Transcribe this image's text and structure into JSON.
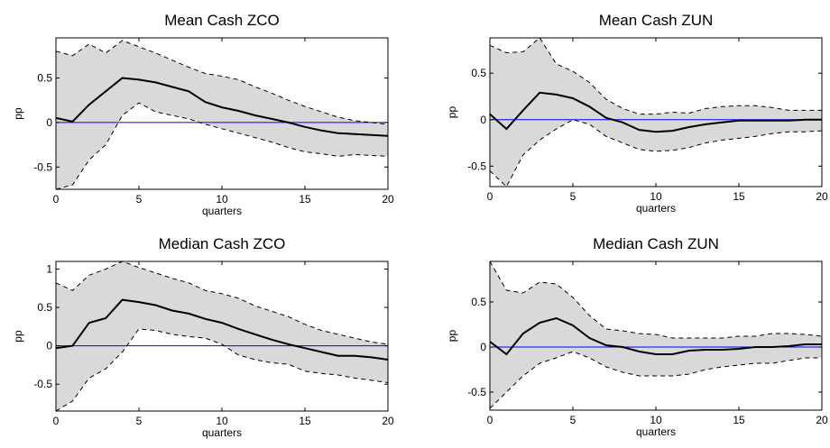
{
  "chart_data": [
    {
      "type": "line",
      "title": "Mean Cash ZCO",
      "xlabel": "quarters",
      "ylabel": "pp",
      "xlim": [
        0,
        20
      ],
      "ylim": [
        -0.75,
        0.95
      ],
      "xticks": [
        0,
        5,
        10,
        15,
        20
      ],
      "xtick_labels": [
        "0",
        "5",
        "10",
        "15",
        "20"
      ],
      "yticks": [
        -0.5,
        0,
        0.5
      ],
      "ytick_labels": [
        "-0.5",
        "0",
        "0.5"
      ],
      "grid": false,
      "x": [
        0,
        1,
        2,
        3,
        4,
        5,
        6,
        7,
        8,
        9,
        10,
        11,
        12,
        13,
        14,
        15,
        16,
        17,
        18,
        19,
        20
      ],
      "series": [
        {
          "role": "upper band",
          "style": "dashed",
          "values": [
            0.8,
            0.75,
            0.88,
            0.78,
            0.92,
            0.85,
            0.78,
            0.7,
            0.62,
            0.55,
            0.52,
            0.48,
            0.4,
            0.33,
            0.25,
            0.18,
            0.12,
            0.06,
            0.02,
            0.0,
            -0.02
          ]
        },
        {
          "role": "estimate",
          "style": "solid",
          "values": [
            0.05,
            0.01,
            0.2,
            0.35,
            0.5,
            0.48,
            0.45,
            0.4,
            0.35,
            0.23,
            0.17,
            0.13,
            0.08,
            0.04,
            0.0,
            -0.05,
            -0.09,
            -0.12,
            -0.13,
            -0.14,
            -0.15
          ]
        },
        {
          "role": "lower band",
          "style": "dashed",
          "values": [
            -0.75,
            -0.7,
            -0.42,
            -0.25,
            0.08,
            0.22,
            0.12,
            0.08,
            0.04,
            -0.02,
            -0.07,
            -0.12,
            -0.17,
            -0.22,
            -0.28,
            -0.33,
            -0.35,
            -0.38,
            -0.36,
            -0.37,
            -0.38
          ]
        }
      ],
      "zero_line": 0,
      "colors": {
        "band_fill": "#d9d9d9",
        "zero_line": "#0000ff",
        "lines": "#000000"
      }
    },
    {
      "type": "line",
      "title": "Mean Cash ZUN",
      "xlabel": "quarters",
      "ylabel": "pp",
      "xlim": [
        0,
        20
      ],
      "ylim": [
        -0.72,
        0.88
      ],
      "xticks": [
        0,
        5,
        10,
        15,
        20
      ],
      "xtick_labels": [
        "0",
        "5",
        "10",
        "15",
        "20"
      ],
      "yticks": [
        -0.5,
        0,
        0.5
      ],
      "ytick_labels": [
        "-0.5",
        "0",
        "0.5"
      ],
      "grid": false,
      "x": [
        0,
        1,
        2,
        3,
        4,
        5,
        6,
        7,
        8,
        9,
        10,
        11,
        12,
        13,
        14,
        15,
        16,
        17,
        18,
        19,
        20
      ],
      "series": [
        {
          "role": "upper band",
          "style": "dashed",
          "values": [
            0.8,
            0.72,
            0.73,
            0.88,
            0.6,
            0.52,
            0.4,
            0.22,
            0.12,
            0.06,
            0.06,
            0.08,
            0.07,
            0.12,
            0.14,
            0.15,
            0.15,
            0.13,
            0.1,
            0.1,
            0.1
          ]
        },
        {
          "role": "estimate",
          "style": "solid",
          "values": [
            0.06,
            -0.1,
            0.1,
            0.29,
            0.27,
            0.23,
            0.14,
            0.02,
            -0.03,
            -0.11,
            -0.13,
            -0.12,
            -0.08,
            -0.05,
            -0.03,
            -0.01,
            -0.01,
            -0.01,
            -0.01,
            0.0,
            0.0
          ]
        },
        {
          "role": "lower band",
          "style": "dashed",
          "values": [
            -0.55,
            -0.72,
            -0.38,
            -0.22,
            -0.1,
            0.0,
            -0.05,
            -0.18,
            -0.25,
            -0.32,
            -0.34,
            -0.33,
            -0.3,
            -0.25,
            -0.22,
            -0.2,
            -0.18,
            -0.15,
            -0.13,
            -0.13,
            -0.12
          ]
        }
      ],
      "zero_line": 0,
      "colors": {
        "band_fill": "#d9d9d9",
        "zero_line": "#0000ff",
        "lines": "#000000"
      }
    },
    {
      "type": "line",
      "title": "Median Cash ZCO",
      "xlabel": "quarters",
      "ylabel": "pp",
      "xlim": [
        0,
        20
      ],
      "ylim": [
        -0.85,
        1.1
      ],
      "xticks": [
        0,
        5,
        10,
        15,
        20
      ],
      "xtick_labels": [
        "0",
        "5",
        "10",
        "15",
        "20"
      ],
      "yticks": [
        -0.5,
        0,
        0.5,
        1
      ],
      "ytick_labels": [
        "-0.5",
        "0",
        "0.5",
        "1"
      ],
      "grid": false,
      "x": [
        0,
        1,
        2,
        3,
        4,
        5,
        6,
        7,
        8,
        9,
        10,
        11,
        12,
        13,
        14,
        15,
        16,
        17,
        18,
        19,
        20
      ],
      "series": [
        {
          "role": "upper band",
          "style": "dashed",
          "values": [
            0.82,
            0.72,
            0.92,
            1.0,
            1.1,
            1.02,
            0.95,
            0.88,
            0.82,
            0.72,
            0.68,
            0.62,
            0.52,
            0.45,
            0.38,
            0.28,
            0.2,
            0.15,
            0.1,
            0.05,
            0.02
          ]
        },
        {
          "role": "estimate",
          "style": "solid",
          "values": [
            -0.03,
            0.0,
            0.3,
            0.36,
            0.6,
            0.57,
            0.53,
            0.46,
            0.42,
            0.35,
            0.3,
            0.22,
            0.15,
            0.08,
            0.02,
            -0.03,
            -0.08,
            -0.13,
            -0.13,
            -0.15,
            -0.18
          ]
        },
        {
          "role": "lower band",
          "style": "dashed",
          "values": [
            -0.85,
            -0.72,
            -0.42,
            -0.3,
            -0.08,
            0.22,
            0.2,
            0.15,
            0.12,
            0.1,
            0.02,
            -0.12,
            -0.18,
            -0.22,
            -0.24,
            -0.33,
            -0.36,
            -0.38,
            -0.42,
            -0.45,
            -0.48
          ]
        }
      ],
      "zero_line": 0,
      "colors": {
        "band_fill": "#d9d9d9",
        "zero_line": "#0000ff",
        "lines": "#000000"
      }
    },
    {
      "type": "line",
      "title": "Median Cash ZUN",
      "xlabel": "quarters",
      "ylabel": "pp",
      "xlim": [
        0,
        20
      ],
      "ylim": [
        -0.7,
        0.95
      ],
      "xticks": [
        0,
        5,
        10,
        15,
        20
      ],
      "xtick_labels": [
        "0",
        "5",
        "10",
        "15",
        "20"
      ],
      "yticks": [
        -0.5,
        0,
        0.5
      ],
      "ytick_labels": [
        "-0.5",
        "0",
        "0.5"
      ],
      "grid": false,
      "x": [
        0,
        1,
        2,
        3,
        4,
        5,
        6,
        7,
        8,
        9,
        10,
        11,
        12,
        13,
        14,
        15,
        16,
        17,
        18,
        19,
        20
      ],
      "series": [
        {
          "role": "upper band",
          "style": "dashed",
          "values": [
            0.95,
            0.63,
            0.6,
            0.72,
            0.7,
            0.55,
            0.35,
            0.2,
            0.18,
            0.15,
            0.14,
            0.1,
            0.1,
            0.1,
            0.1,
            0.12,
            0.12,
            0.15,
            0.15,
            0.14,
            0.12
          ]
        },
        {
          "role": "estimate",
          "style": "solid",
          "values": [
            0.06,
            -0.08,
            0.15,
            0.27,
            0.32,
            0.24,
            0.1,
            0.02,
            0.0,
            -0.05,
            -0.08,
            -0.08,
            -0.04,
            -0.03,
            -0.03,
            -0.02,
            0.0,
            0.0,
            0.01,
            0.03,
            0.03
          ]
        },
        {
          "role": "lower band",
          "style": "dashed",
          "values": [
            -0.68,
            -0.5,
            -0.32,
            -0.18,
            -0.12,
            -0.05,
            -0.12,
            -0.22,
            -0.28,
            -0.32,
            -0.32,
            -0.32,
            -0.3,
            -0.25,
            -0.22,
            -0.2,
            -0.18,
            -0.18,
            -0.15,
            -0.12,
            -0.12
          ]
        }
      ],
      "zero_line": 0,
      "colors": {
        "band_fill": "#d9d9d9",
        "zero_line": "#0000ff",
        "lines": "#000000"
      }
    }
  ]
}
